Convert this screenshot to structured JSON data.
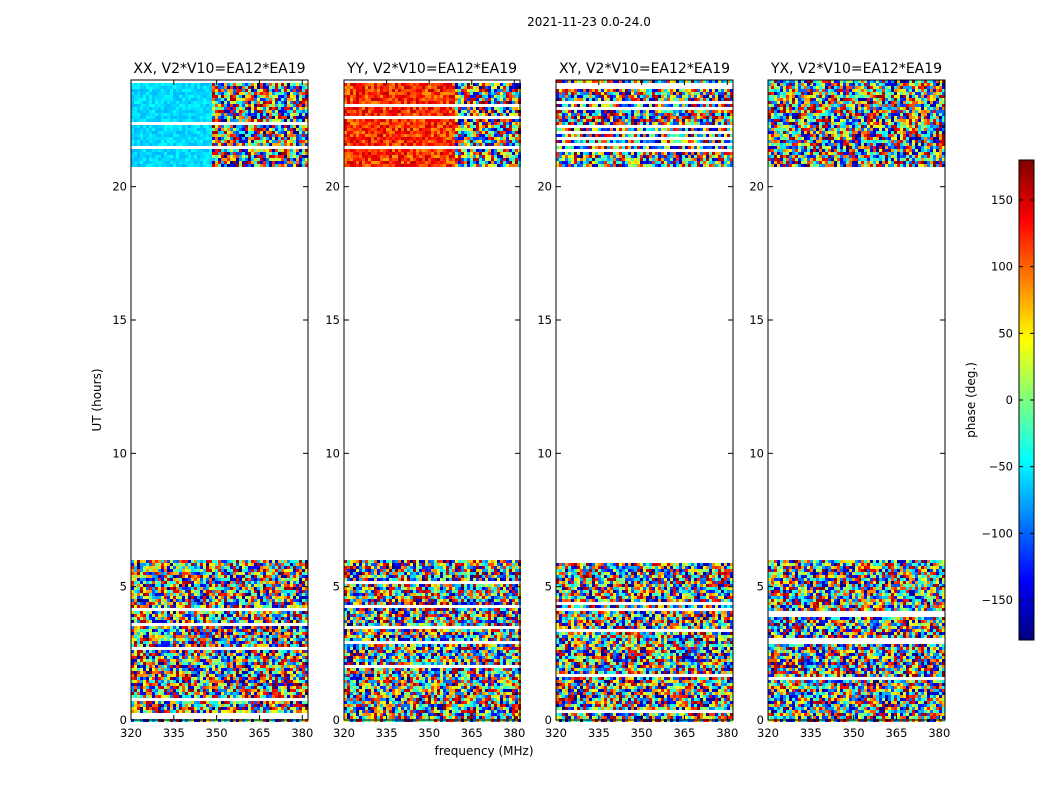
{
  "suptitle": "2021-11-23 0.0-24.0",
  "chart_data": {
    "type": "heatmap",
    "suptitle": "2021-11-23 0.0-24.0",
    "xlabel": "frequency (MHz)",
    "ylabel": "UT (hours)",
    "xlim": [
      320,
      382
    ],
    "ylim": [
      0,
      24
    ],
    "x_ticks": [
      320,
      335,
      350,
      365,
      380
    ],
    "y_ticks": [
      0,
      5,
      10,
      15,
      20
    ],
    "colorbar": {
      "label": "phase (deg.)",
      "range": [
        -180,
        180
      ],
      "ticks": [
        150,
        100,
        50,
        0,
        -50,
        -100,
        -150
      ],
      "colormap": "jet",
      "colors": [
        "#00007f",
        "#0000ff",
        "#007fff",
        "#00ffff",
        "#7fff7f",
        "#ffff00",
        "#ff7f00",
        "#ff0000",
        "#7f0000"
      ]
    },
    "observed_time_ranges_hours": [
      [
        0.0,
        6.0
      ],
      [
        20.8,
        24.0
      ]
    ],
    "panels": [
      {
        "title": "XX, V2*V10=EA12*EA19",
        "polarization": "XX",
        "baseline": "V2*V10=EA12*EA19"
      },
      {
        "title": "YY, V2*V10=EA12*EA19",
        "polarization": "YY",
        "baseline": "V2*V10=EA12*EA19"
      },
      {
        "title": "XY, V2*V10=EA12*EA19",
        "polarization": "XY",
        "baseline": "V2*V10=EA12*EA19"
      },
      {
        "title": "YX, V2*V10=EA12*EA19",
        "polarization": "YX",
        "baseline": "V2*V10=EA12*EA19"
      }
    ]
  }
}
